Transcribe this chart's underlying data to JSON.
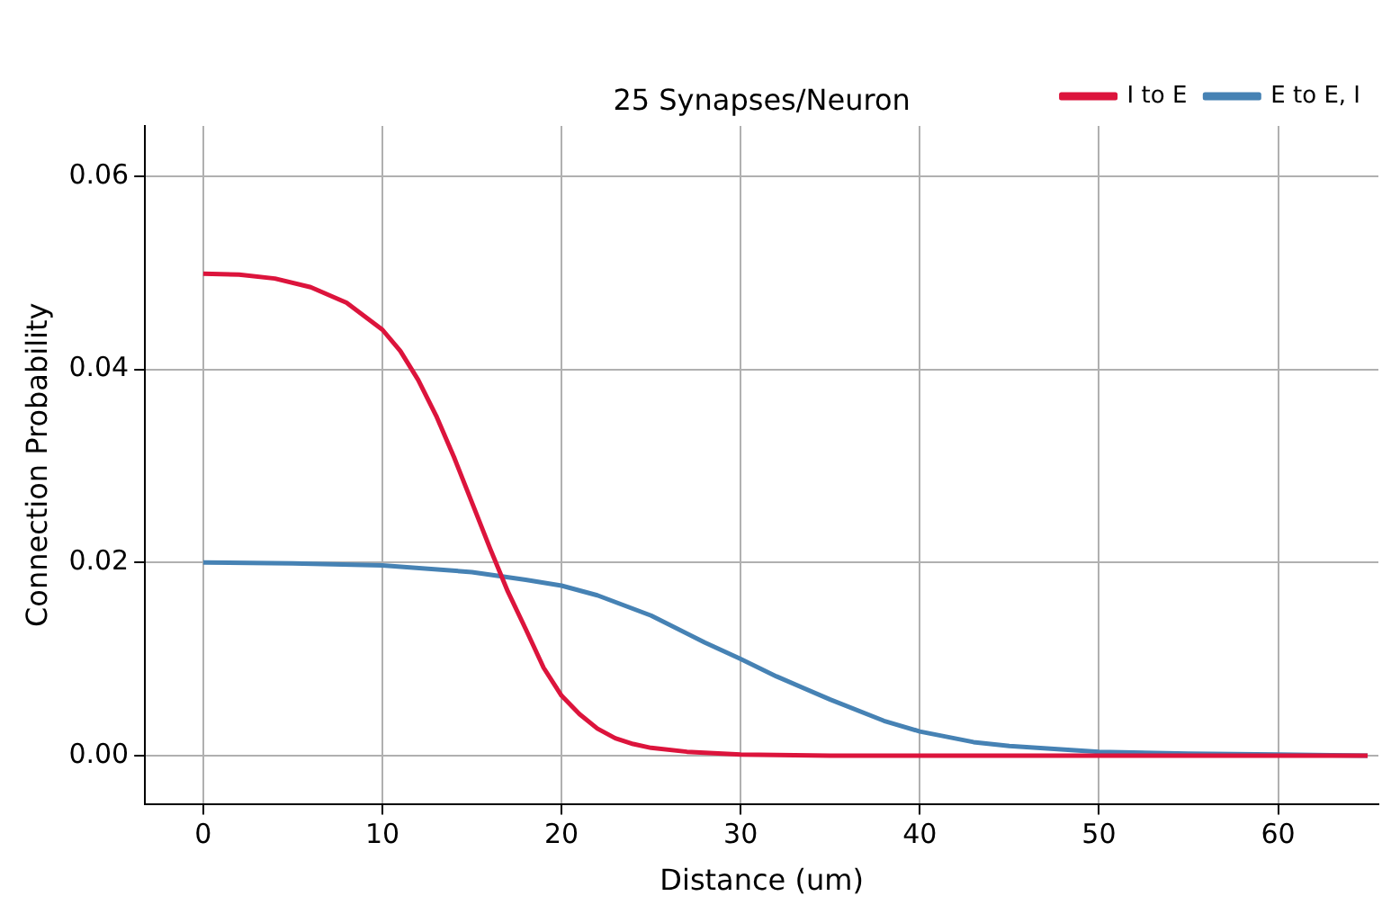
{
  "chart_data": {
    "type": "line",
    "title": "25 Synapses/Neuron",
    "xlabel": "Distance (um)",
    "ylabel": "Connection Probability",
    "series": [
      {
        "name": "I to E",
        "color": "#dc143c",
        "x": [
          0,
          2,
          4,
          6,
          8,
          10,
          11,
          12,
          13,
          14,
          15,
          16,
          17,
          18,
          19,
          20,
          21,
          22,
          23,
          24,
          25,
          27,
          30,
          35,
          40,
          50,
          65
        ],
        "values": [
          0.0499,
          0.0498,
          0.0494,
          0.0485,
          0.0469,
          0.0441,
          0.0419,
          0.0389,
          0.0352,
          0.0309,
          0.0262,
          0.0215,
          0.017,
          0.0131,
          0.0091,
          0.0062,
          0.0043,
          0.0028,
          0.0018,
          0.0012,
          0.0008,
          0.0004,
          0.0001,
          0.0,
          0.0,
          0.0,
          0.0
        ]
      },
      {
        "name": "E to E, I",
        "color": "#4682b4",
        "x": [
          0,
          5,
          10,
          15,
          18,
          20,
          22,
          25,
          28,
          30,
          32,
          35,
          38,
          40,
          43,
          45,
          50,
          55,
          60,
          65
        ],
        "values": [
          0.02,
          0.0199,
          0.0197,
          0.019,
          0.0182,
          0.0176,
          0.0166,
          0.0145,
          0.0117,
          0.01,
          0.0082,
          0.0058,
          0.0036,
          0.0025,
          0.0014,
          0.001,
          0.0004,
          0.0002,
          0.0001,
          0.0
        ]
      }
    ],
    "xlim": [
      -3.25,
      65.6
    ],
    "xticks": [
      0,
      10,
      20,
      30,
      40,
      50,
      60
    ],
    "ylim": [
      -0.005,
      0.0652
    ],
    "yticks": [
      {
        "value": 0,
        "label": "0.00"
      },
      0.02,
      0.04,
      0.06
    ],
    "grid": true,
    "legend": "top right",
    "marker": "none",
    "line_style": "solid"
  }
}
